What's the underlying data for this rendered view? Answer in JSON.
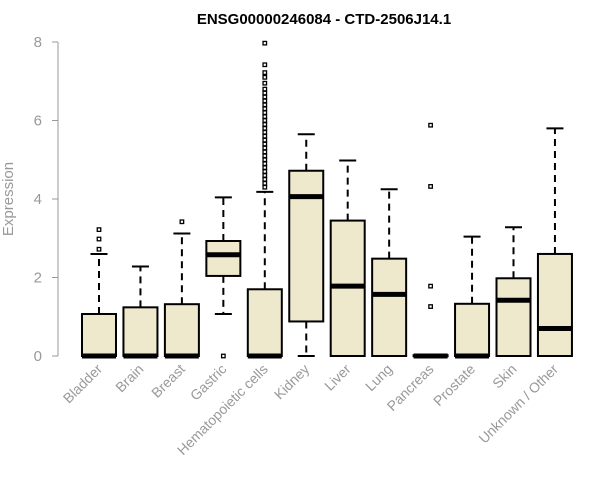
{
  "chart_data": {
    "type": "boxplot",
    "title": "ENSG00000246084 - CTD-2506J14.1",
    "xlabel": "",
    "ylabel": "Expression",
    "ylim": [
      0,
      8
    ],
    "yticks": [
      0,
      2,
      4,
      6,
      8
    ],
    "grid": false,
    "box_fill": "#EEE8CD",
    "categories": [
      "Bladder",
      "Brain",
      "Breast",
      "Gastric",
      "Hematopoietic cells",
      "Kidney",
      "Liver",
      "Lung",
      "Pancreas",
      "Prostate",
      "Skin",
      "Unknown / Other"
    ],
    "boxes": [
      {
        "name": "Bladder",
        "whisker_low": 0,
        "q1": 0,
        "median": 0,
        "q3": 1.07,
        "whisker_high": 2.6,
        "outliers": [
          2.72,
          2.98,
          3.22
        ]
      },
      {
        "name": "Brain",
        "whisker_low": 0,
        "q1": 0,
        "median": 0,
        "q3": 1.24,
        "whisker_high": 2.28,
        "outliers": []
      },
      {
        "name": "Breast",
        "whisker_low": 0,
        "q1": 0,
        "median": 0,
        "q3": 1.32,
        "whisker_high": 3.12,
        "outliers": [
          3.42
        ]
      },
      {
        "name": "Gastric",
        "whisker_low": 1.07,
        "q1": 2.04,
        "median": 2.58,
        "q3": 2.93,
        "whisker_high": 4.04,
        "outliers": [
          0
        ]
      },
      {
        "name": "Hematopoietic cells",
        "whisker_low": 0,
        "q1": 0,
        "median": 0,
        "q3": 1.7,
        "whisker_high": 4.18,
        "outliers": [
          4.3,
          4.4,
          4.5,
          4.6,
          4.7,
          4.8,
          4.9,
          5.0,
          5.1,
          5.2,
          5.3,
          5.4,
          5.5,
          5.6,
          5.7,
          5.8,
          5.9,
          6.0,
          6.1,
          6.2,
          6.3,
          6.4,
          6.5,
          6.6,
          6.7,
          6.8,
          6.95,
          7.1,
          7.22,
          7.42,
          7.97
        ]
      },
      {
        "name": "Kidney",
        "whisker_low": 0,
        "q1": 0.88,
        "median": 4.06,
        "q3": 4.72,
        "whisker_high": 5.65,
        "outliers": []
      },
      {
        "name": "Liver",
        "whisker_low": 0,
        "q1": 0,
        "median": 1.78,
        "q3": 3.45,
        "whisker_high": 4.98,
        "outliers": []
      },
      {
        "name": "Lung",
        "whisker_low": 0,
        "q1": 0,
        "median": 1.57,
        "q3": 2.48,
        "whisker_high": 4.25,
        "outliers": []
      },
      {
        "name": "Pancreas",
        "whisker_low": 0,
        "q1": 0,
        "median": 0,
        "q3": 0.02,
        "whisker_high": 0.02,
        "outliers": [
          1.26,
          1.78,
          4.32,
          5.88
        ]
      },
      {
        "name": "Prostate",
        "whisker_low": 0,
        "q1": 0,
        "median": 0,
        "q3": 1.33,
        "whisker_high": 3.04,
        "outliers": []
      },
      {
        "name": "Skin",
        "whisker_low": 0,
        "q1": 0,
        "median": 1.42,
        "q3": 1.98,
        "whisker_high": 3.28,
        "outliers": []
      },
      {
        "name": "Unknown / Other",
        "whisker_low": 0,
        "q1": 0,
        "median": 0.7,
        "q3": 2.6,
        "whisker_high": 5.8,
        "outliers": []
      }
    ]
  }
}
